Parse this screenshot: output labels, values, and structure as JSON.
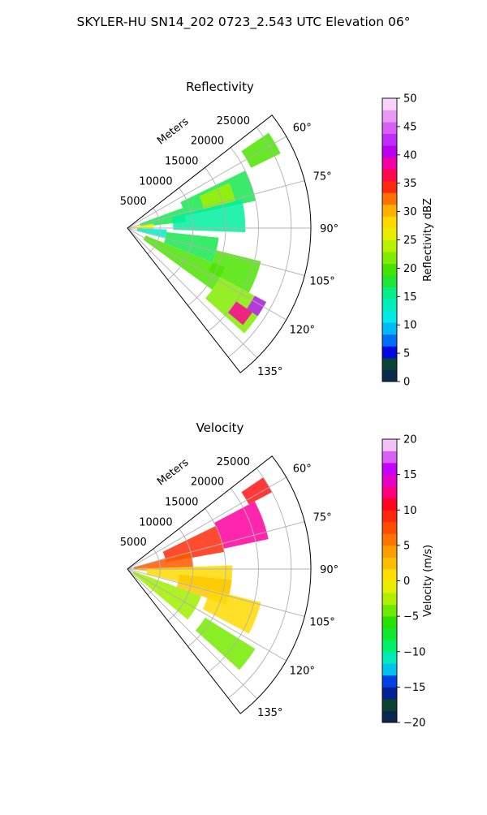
{
  "figure": {
    "suptitle": "SKYLER-HU  SN14_202  0723_2.543 UTC Elevation 06°"
  },
  "chart_data": [
    {
      "type": "heatmap",
      "projection": "polar-sector",
      "title": "Reflectivity",
      "range_label": "Meters",
      "range_ticks": [
        5000,
        10000,
        15000,
        20000,
        25000
      ],
      "range_tick_labels": [
        "5000",
        "10000",
        "15000",
        "20000",
        "25000"
      ],
      "range_lim": [
        0,
        28000
      ],
      "azimuth_lim": [
        52,
        142
      ],
      "azimuth_ticks": [
        60,
        75,
        90,
        105,
        120,
        135
      ],
      "azimuth_tick_labels": [
        "60°",
        "75°",
        "90°",
        "105°",
        "120°",
        "135°"
      ],
      "grid": true,
      "colorbar": {
        "label": "Reflectivity dBZ",
        "range": [
          0,
          50
        ],
        "ticks": [
          0,
          5,
          10,
          15,
          20,
          25,
          30,
          35,
          40,
          45,
          50
        ],
        "tick_labels": [
          "0",
          "5",
          "10",
          "15",
          "20",
          "25",
          "30",
          "35",
          "40",
          "45",
          "50"
        ],
        "color_stops": [
          {
            "value": 0,
            "color": "#0a1a5c"
          },
          {
            "value": 3,
            "color": "#0b4a2a"
          },
          {
            "value": 5,
            "color": "#0000e0"
          },
          {
            "value": 8,
            "color": "#0090ff"
          },
          {
            "value": 11,
            "color": "#00e8f0"
          },
          {
            "value": 15,
            "color": "#00f0a0"
          },
          {
            "value": 19,
            "color": "#30e000"
          },
          {
            "value": 23,
            "color": "#a0f000"
          },
          {
            "value": 27,
            "color": "#ffee00"
          },
          {
            "value": 31,
            "color": "#ffa000"
          },
          {
            "value": 35,
            "color": "#ff1010"
          },
          {
            "value": 38,
            "color": "#ff0090"
          },
          {
            "value": 41,
            "color": "#b000ff"
          },
          {
            "value": 46,
            "color": "#e080f0"
          },
          {
            "value": 50,
            "color": "#fff0ff"
          }
        ]
      },
      "echo_regions": [
        {
          "az": [
            56,
            64
          ],
          "range": [
            21000,
            26000
          ],
          "value": 20
        },
        {
          "az": [
            64,
            78
          ],
          "range": [
            9000,
            20000
          ],
          "value": 17
        },
        {
          "az": [
            66,
            76
          ],
          "range": [
            12000,
            17000
          ],
          "value": 23
        },
        {
          "az": [
            70,
            84
          ],
          "range": [
            2000,
            9000
          ],
          "value": 17
        },
        {
          "az": [
            76,
            92
          ],
          "range": [
            7000,
            18000
          ],
          "value": 15
        },
        {
          "az": [
            80,
            92
          ],
          "range": [
            0,
            4000
          ],
          "value": 27
        },
        {
          "az": [
            92,
            104
          ],
          "range": [
            1500,
            6000
          ],
          "value": 13
        },
        {
          "az": [
            96,
            112
          ],
          "range": [
            6000,
            14000
          ],
          "value": 17
        },
        {
          "az": [
            104,
            118
          ],
          "range": [
            14000,
            21000
          ],
          "value": 20
        },
        {
          "az": [
            112,
            126
          ],
          "range": [
            3000,
            16000
          ],
          "value": 20
        },
        {
          "az": [
            118,
            132
          ],
          "range": [
            16000,
            24000
          ],
          "value": 22
        },
        {
          "az": [
            124,
            130
          ],
          "range": [
            20000,
            23000
          ],
          "value": 38
        },
        {
          "az": [
            118,
            124
          ],
          "range": [
            22000,
            24000
          ],
          "value": 42
        }
      ]
    },
    {
      "type": "heatmap",
      "projection": "polar-sector",
      "title": "Velocity",
      "range_label": "Meters",
      "range_ticks": [
        5000,
        10000,
        15000,
        20000,
        25000
      ],
      "range_tick_labels": [
        "5000",
        "10000",
        "15000",
        "20000",
        "25000"
      ],
      "range_lim": [
        0,
        28000
      ],
      "azimuth_lim": [
        52,
        142
      ],
      "azimuth_ticks": [
        60,
        75,
        90,
        105,
        120,
        135
      ],
      "azimuth_tick_labels": [
        "60°",
        "75°",
        "90°",
        "105°",
        "120°",
        "135°"
      ],
      "grid": true,
      "colorbar": {
        "label": "Velocity (m/s)",
        "range": [
          -20,
          20
        ],
        "ticks": [
          -20,
          -15,
          -10,
          -5,
          0,
          5,
          10,
          15,
          20
        ],
        "tick_labels": [
          "−20",
          "−15",
          "−10",
          "−5",
          "0",
          "5",
          "10",
          "15",
          "20"
        ],
        "color_stops": [
          {
            "value": -20,
            "color": "#0a1a5c"
          },
          {
            "value": -17,
            "color": "#0b4a2a"
          },
          {
            "value": -15,
            "color": "#0000e0"
          },
          {
            "value": -12,
            "color": "#00e8f0"
          },
          {
            "value": -9,
            "color": "#00f060"
          },
          {
            "value": -6,
            "color": "#20e000"
          },
          {
            "value": -3,
            "color": "#a0f000"
          },
          {
            "value": 0,
            "color": "#ffee00"
          },
          {
            "value": 4,
            "color": "#ffa000"
          },
          {
            "value": 8,
            "color": "#ff4000"
          },
          {
            "value": 11,
            "color": "#ff0020"
          },
          {
            "value": 13,
            "color": "#ff00a0"
          },
          {
            "value": 16,
            "color": "#c000ff"
          },
          {
            "value": 18,
            "color": "#e080f0"
          },
          {
            "value": 20,
            "color": "#fff0ff"
          }
        ]
      },
      "echo_regions": [
        {
          "az": [
            56,
            62
          ],
          "range": [
            21000,
            25000
          ],
          "value": 10
        },
        {
          "az": [
            62,
            78
          ],
          "range": [
            15000,
            22000
          ],
          "value": 13
        },
        {
          "az": [
            64,
            80
          ],
          "range": [
            6000,
            15000
          ],
          "value": 9
        },
        {
          "az": [
            74,
            90
          ],
          "range": [
            1000,
            10000
          ],
          "value": 7
        },
        {
          "az": [
            86,
            96
          ],
          "range": [
            0,
            3000
          ],
          "value": 3
        },
        {
          "az": [
            88,
            104
          ],
          "range": [
            3000,
            16000
          ],
          "value": 1
        },
        {
          "az": [
            96,
            110
          ],
          "range": [
            8000,
            16000
          ],
          "value": 2
        },
        {
          "az": [
            104,
            118
          ],
          "range": [
            13000,
            21000
          ],
          "value": 1
        },
        {
          "az": [
            110,
            130
          ],
          "range": [
            1000,
            12000
          ],
          "value": -3
        },
        {
          "az": [
            122,
            132
          ],
          "range": [
            14000,
            23000
          ],
          "value": -4
        }
      ]
    }
  ]
}
